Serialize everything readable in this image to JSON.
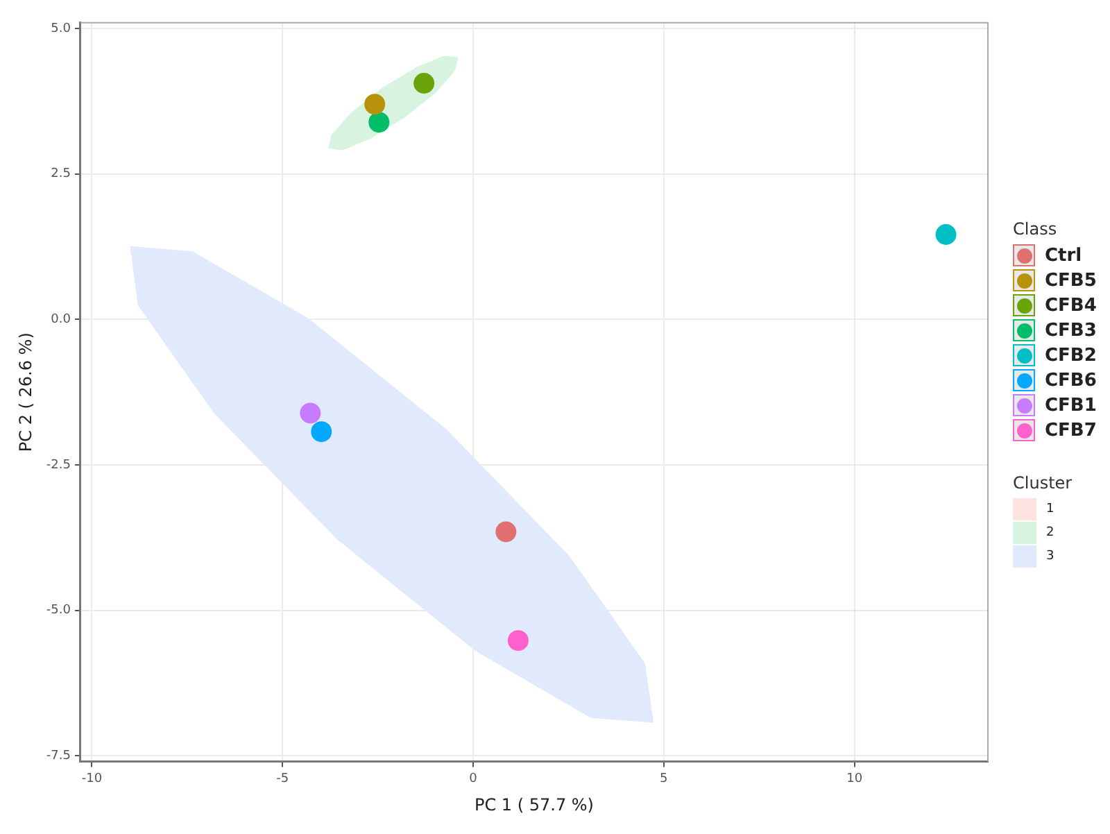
{
  "chart_data": {
    "type": "scatter",
    "xlabel": "PC 1 ( 57.7 %)",
    "ylabel": "PC 2 ( 26.6 %)",
    "legend_title": "Class",
    "annotations": [
      "Cluster"
    ],
    "xlim": [
      -10.3,
      13.5
    ],
    "ylim": [
      -7.6,
      5.1
    ],
    "xticks": [
      -10,
      -5,
      0,
      5,
      10
    ],
    "yticks": [
      {
        "value": -7.5,
        "label": "-7.5"
      },
      {
        "value": -5,
        "label": "-5.0"
      },
      {
        "value": -2.5,
        "label": "-2.5"
      },
      {
        "value": 0,
        "label": "0.0"
      },
      {
        "value": 2.5,
        "label": "2.5"
      },
      {
        "value": 5,
        "label": "5.0"
      }
    ],
    "grid": true,
    "legend": "right",
    "marker": "circle",
    "series": [
      {
        "name": "Ctrl",
        "color": "#e07070",
        "x": [
          0.86
        ],
        "values": [
          -3.65
        ]
      },
      {
        "name": "CFB5",
        "color": "#b8920a",
        "x": [
          -2.58
        ],
        "values": [
          3.7
        ]
      },
      {
        "name": "CFB4",
        "color": "#6aa30a",
        "x": [
          -1.29
        ],
        "values": [
          4.06
        ]
      },
      {
        "name": "CFB3",
        "color": "#00be67",
        "x": [
          -2.47
        ],
        "values": [
          3.39
        ]
      },
      {
        "name": "CFB2",
        "color": "#00bfc4",
        "x": [
          12.4
        ],
        "values": [
          1.46
        ]
      },
      {
        "name": "CFB6",
        "color": "#00a9ff",
        "x": [
          -3.98
        ],
        "values": [
          -1.93
        ]
      },
      {
        "name": "CFB1",
        "color": "#c77cff",
        "x": [
          -4.27
        ],
        "values": [
          -1.61
        ]
      },
      {
        "name": "CFB7",
        "color": "#ff61cc",
        "x": [
          1.18
        ],
        "values": [
          -5.52
        ]
      },
      {
        "name": "1",
        "type": "area",
        "color": "#fde4e1",
        "marker": "none"
      },
      {
        "name": "2",
        "type": "area",
        "color": "#d8f3df",
        "marker": "none",
        "x": [
          -0.39,
          -0.47,
          -0.99,
          -1.8,
          -2.69,
          -3.42,
          -3.8,
          -3.72,
          -3.21,
          -2.39,
          -1.5,
          -0.77,
          -0.39
        ],
        "values": [
          4.51,
          4.28,
          3.89,
          3.47,
          3.11,
          2.91,
          2.94,
          3.17,
          3.55,
          3.98,
          4.33,
          4.53,
          4.51
        ]
      },
      {
        "name": "3",
        "type": "area",
        "color": "#e0eafc",
        "marker": "none",
        "x": [
          4.73,
          4.51,
          2.53,
          -0.7,
          -4.32,
          -7.36,
          -9.0,
          -8.79,
          -6.8,
          -3.57,
          0.06,
          3.09,
          4.73
        ],
        "values": [
          -6.93,
          -5.91,
          -4.07,
          -1.89,
          0.02,
          1.17,
          1.26,
          0.24,
          -1.61,
          -3.78,
          -5.7,
          -6.85,
          -6.93
        ]
      }
    ]
  }
}
